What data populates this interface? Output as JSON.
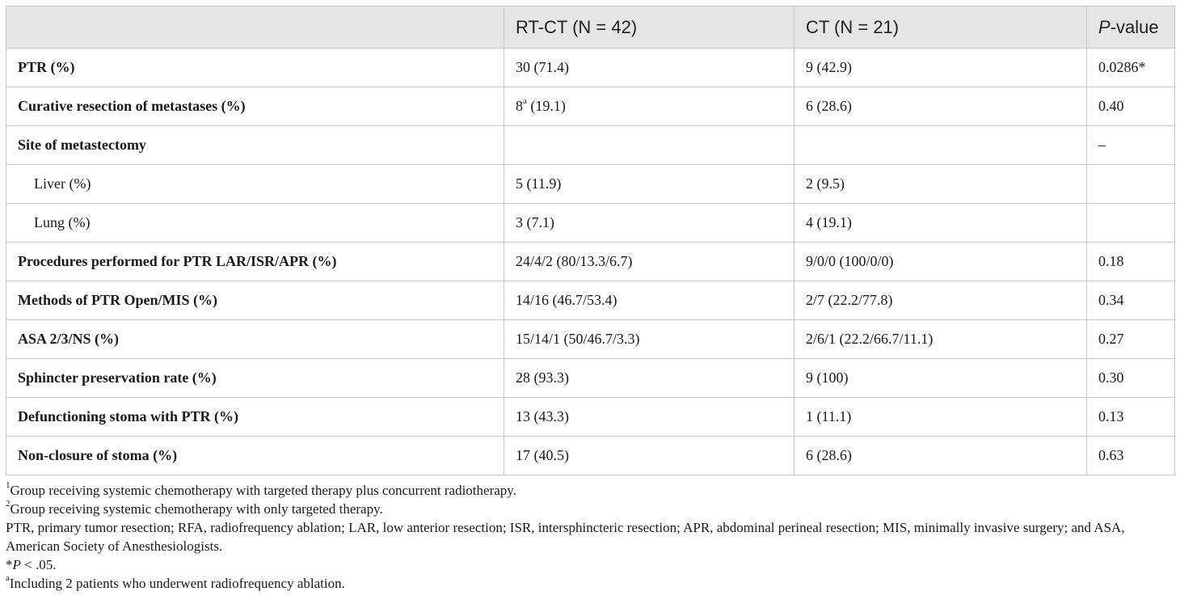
{
  "table": {
    "header": {
      "col0": "",
      "col1": "RT-CT (N = 42)",
      "col2": "CT (N = 21)",
      "col3_italic": "P",
      "col3_rest": "-value"
    },
    "rows": [
      {
        "label": "PTR (%)",
        "rt": "30 (71.4)",
        "ct": "9 (42.9)",
        "p": "0.0286*"
      },
      {
        "label": "Curative resection of metastases (%)",
        "rt_sup_base": "8",
        "rt_sup": "a",
        "rt_rest": " (19.1)",
        "ct": "6 (28.6)",
        "p": "0.40"
      },
      {
        "label": "Site of metastectomy",
        "rt": "",
        "ct": "",
        "p": "–"
      },
      {
        "label": "Liver (%)",
        "rt": "5 (11.9)",
        "ct": "2 (9.5)",
        "p": ""
      },
      {
        "label": "Lung (%)",
        "rt": "3 (7.1)",
        "ct": "4 (19.1)",
        "p": ""
      },
      {
        "label": "Procedures performed for PTR LAR/ISR/APR (%)",
        "rt": "24/4/2 (80/13.3/6.7)",
        "ct": "9/0/0 (100/0/0)",
        "p": "0.18"
      },
      {
        "label": "Methods of PTR Open/MIS (%)",
        "rt": "14/16 (46.7/53.4)",
        "ct": "2/7 (22.2/77.8)",
        "p": "0.34"
      },
      {
        "label": "ASA 2/3/NS (%)",
        "rt": "15/14/1 (50/46.7/3.3)",
        "ct": "2/6/1 (22.2/66.7/11.1)",
        "p": "0.27"
      },
      {
        "label": "Sphincter preservation rate (%)",
        "rt": "28 (93.3)",
        "ct": "9 (100)",
        "p": "0.30"
      },
      {
        "label": "Defunctioning stoma with PTR (%)",
        "rt": "13 (43.3)",
        "ct": "1 (11.1)",
        "p": "0.13"
      },
      {
        "label": "Non-closure of stoma (%)",
        "rt": "17 (40.5)",
        "ct": "6 (28.6)",
        "p": "0.63"
      }
    ]
  },
  "footnotes": {
    "n1_sup": "1",
    "n1": "Group receiving systemic chemotherapy with targeted therapy plus concurrent radiotherapy.",
    "n2_sup": "2",
    "n2": "Group receiving systemic chemotherapy with only targeted therapy.",
    "abbrev": "PTR, primary tumor resection; RFA, radiofrequency ablation; LAR, low anterior resection; ISR, intersphincteric resection; APR, abdominal perineal resection; MIS, minimally invasive surgery; and ASA, American Society of Anesthesiologists.",
    "sig_star": "*",
    "sig_p": "P",
    "sig_rest": " < .05.",
    "na_sup": "a",
    "na": "Including 2 patients who underwent radiofrequency ablation."
  },
  "colors": {
    "header_bg": "#e5e5e5",
    "border": "#c6c6c6",
    "text": "#1a1a1a"
  }
}
